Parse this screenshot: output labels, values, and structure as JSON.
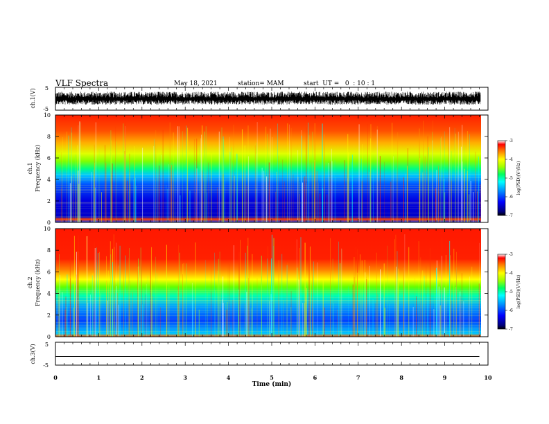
{
  "header": {
    "title": "VLF Spectra",
    "date": "May 18, 2021",
    "station": "station= MAM",
    "start": "start  UT =   0  : 10 : 1"
  },
  "chart_data": [
    {
      "type": "line",
      "name": "ch1-waveform",
      "ylabel": "ch.1(V)",
      "ylim": [
        -5,
        5
      ],
      "yticks": [
        "5",
        "-5"
      ],
      "x": [
        0,
        10
      ],
      "note_values": "dense noisy waveform oscillating approximately between -2 and 3 V"
    },
    {
      "type": "heatmap",
      "name": "ch1-spectrogram",
      "ylabel_top": "ch.1",
      "ylabel": "Frequency (kHz)",
      "ylim": [
        0,
        10
      ],
      "yticks": [
        "0",
        "2",
        "4",
        "6",
        "8",
        "10"
      ],
      "xlim": [
        0,
        10
      ],
      "colorbar": {
        "label": "log(PSD)(V²/Hz)",
        "range": [
          -7,
          -3
        ],
        "ticks": [
          "-3",
          "-4",
          "-5",
          "-6",
          "-7"
        ]
      },
      "bands_khz": [
        {
          "from": 0,
          "to": 4.5,
          "level": "low"
        },
        {
          "from": 4.5,
          "to": 6.0,
          "level": "mid"
        },
        {
          "from": 6.0,
          "to": 10,
          "level": "high"
        }
      ]
    },
    {
      "type": "heatmap",
      "name": "ch2-spectrogram",
      "ylabel_top": "ch.2",
      "ylabel": "Frequency (kHz)",
      "ylim": [
        0,
        10
      ],
      "yticks": [
        "0",
        "2",
        "4",
        "6",
        "8",
        "10"
      ],
      "xlim": [
        0,
        10
      ],
      "colorbar": {
        "label": "log(PSD)(V²/Hz)",
        "range": [
          -7,
          -3
        ],
        "ticks": [
          "-3",
          "-4",
          "-5",
          "-6",
          "-7"
        ]
      },
      "bands_khz": [
        {
          "from": 0,
          "to": 4.0,
          "level": "low"
        },
        {
          "from": 4.0,
          "to": 5.5,
          "level": "mid"
        },
        {
          "from": 5.5,
          "to": 10,
          "level": "high"
        }
      ]
    },
    {
      "type": "line",
      "name": "ch3-waveform",
      "ylabel": "ch.3(V)",
      "ylim": [
        -5,
        5
      ],
      "yticks": [
        "5",
        "-5"
      ],
      "x": [
        0,
        9.8
      ],
      "y": [
        -1.2,
        -1.2
      ]
    }
  ],
  "xaxis": {
    "label": "Time (min)",
    "ticks": [
      "0",
      "1",
      "2",
      "3",
      "4",
      "5",
      "6",
      "7",
      "8",
      "9",
      "10"
    ],
    "range": [
      0,
      10
    ],
    "data_end": 9.8
  },
  "colors": {
    "palette": [
      "#000080",
      "#0000ff",
      "#0080ff",
      "#00ffff",
      "#00ff80",
      "#80ff00",
      "#ffff00",
      "#ff8000",
      "#ff0000"
    ]
  }
}
